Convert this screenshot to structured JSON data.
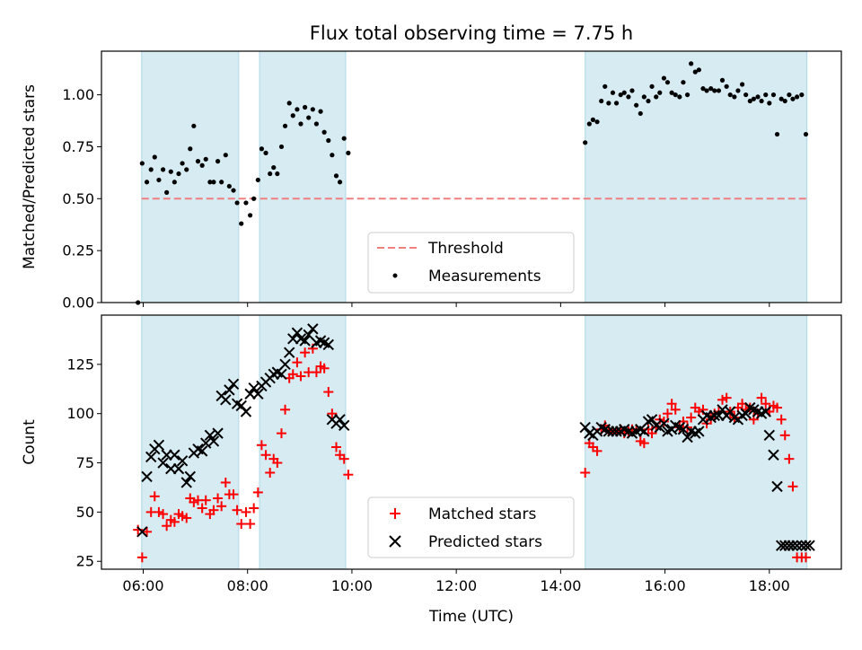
{
  "title": "Flux total observing time = 7.75 h",
  "colors": {
    "shade": "#add8e6",
    "threshold": "#f08080",
    "measurement": "#000000",
    "matched": "#ff0000",
    "predicted": "#000000"
  },
  "chart_data": [
    {
      "type": "scatter",
      "panel": "top",
      "ylabel": "Matched/Predicted stars",
      "xlabel": "",
      "xlim_hours": [
        5.2,
        19.38
      ],
      "ylim": [
        0,
        1.21
      ],
      "yticks": [
        "0.00",
        "0.25",
        "0.50",
        "0.75",
        "1.00"
      ],
      "grid": false,
      "legend_position": "lower-center",
      "observing_windows_hours": [
        [
          5.97,
          7.83
        ],
        [
          8.23,
          9.88
        ],
        [
          14.47,
          18.72
        ]
      ],
      "threshold": {
        "name": "Threshold",
        "y": 0.5,
        "x_start_hours": 5.97,
        "x_end_hours": 18.72
      },
      "series": [
        {
          "name": "Measurements",
          "x_hours": [
            5.9,
            5.98,
            6.07,
            6.15,
            6.22,
            6.3,
            6.38,
            6.45,
            6.53,
            6.6,
            6.68,
            6.75,
            6.83,
            6.9,
            6.97,
            7.05,
            7.13,
            7.2,
            7.28,
            7.35,
            7.43,
            7.5,
            7.58,
            7.65,
            7.73,
            7.8,
            7.88,
            7.97,
            8.05,
            8.12,
            8.2,
            8.27,
            8.35,
            8.43,
            8.5,
            8.57,
            8.65,
            8.72,
            8.8,
            8.87,
            8.95,
            9.02,
            9.1,
            9.17,
            9.25,
            9.32,
            9.4,
            9.47,
            9.55,
            9.62,
            9.7,
            9.77,
            9.85,
            9.93,
            14.47,
            14.55,
            14.62,
            14.7,
            14.78,
            14.85,
            14.92,
            15.0,
            15.07,
            15.15,
            15.22,
            15.3,
            15.37,
            15.45,
            15.53,
            15.6,
            15.68,
            15.75,
            15.83,
            15.9,
            15.98,
            16.05,
            16.13,
            16.2,
            16.28,
            16.35,
            16.43,
            16.5,
            16.58,
            16.65,
            16.73,
            16.8,
            16.88,
            16.95,
            17.03,
            17.1,
            17.18,
            17.25,
            17.33,
            17.4,
            17.48,
            17.55,
            17.63,
            17.7,
            17.78,
            17.85,
            17.93,
            18.0,
            18.08,
            18.15,
            18.23,
            18.3,
            18.38,
            18.45,
            18.53,
            18.62,
            18.7
          ],
          "y": [
            0.0,
            0.67,
            0.58,
            0.64,
            0.7,
            0.59,
            0.64,
            0.53,
            0.63,
            0.58,
            0.62,
            0.67,
            0.64,
            0.74,
            0.85,
            0.68,
            0.66,
            0.69,
            0.58,
            0.58,
            0.68,
            0.58,
            0.71,
            0.56,
            0.54,
            0.48,
            0.38,
            0.48,
            0.42,
            0.5,
            0.59,
            0.74,
            0.72,
            0.62,
            0.65,
            0.62,
            0.75,
            0.85,
            0.96,
            0.9,
            0.93,
            0.86,
            0.94,
            0.89,
            0.93,
            0.86,
            0.92,
            0.82,
            0.78,
            0.71,
            0.61,
            0.58,
            0.79,
            0.72,
            0.77,
            0.86,
            0.88,
            0.87,
            0.97,
            1.04,
            0.96,
            1.01,
            0.96,
            1.0,
            1.01,
            0.99,
            1.02,
            0.95,
            0.91,
            0.99,
            0.97,
            1.04,
            0.99,
            1.01,
            1.08,
            1.06,
            1.01,
            1.0,
            0.99,
            1.06,
            1.0,
            1.15,
            1.11,
            1.12,
            1.03,
            1.02,
            1.03,
            1.02,
            1.02,
            1.07,
            1.04,
            1.0,
            0.99,
            1.02,
            1.05,
            1.0,
            0.97,
            0.98,
            0.99,
            0.97,
            1.0,
            0.96,
            1.0,
            0.81,
            0.98,
            0.97,
            1.0,
            0.98,
            0.99,
            1.0,
            0.81
          ]
        }
      ]
    },
    {
      "type": "scatter",
      "panel": "bottom",
      "ylabel": "Count",
      "xlabel": "Time (UTC)",
      "xlim_hours": [
        5.2,
        19.38
      ],
      "xticks": [
        "06:00",
        "08:00",
        "10:00",
        "12:00",
        "14:00",
        "16:00",
        "18:00"
      ],
      "ylim": [
        21,
        150
      ],
      "yticks": [
        "25",
        "50",
        "75",
        "100",
        "125"
      ],
      "grid": false,
      "legend_position": "lower-center",
      "observing_windows_hours": [
        [
          5.97,
          7.83
        ],
        [
          8.23,
          9.88
        ],
        [
          14.47,
          18.72
        ]
      ],
      "series": [
        {
          "name": "Matched stars",
          "x_hours": [
            5.9,
            5.98,
            6.07,
            6.15,
            6.22,
            6.3,
            6.38,
            6.45,
            6.53,
            6.6,
            6.68,
            6.75,
            6.83,
            6.9,
            6.97,
            7.05,
            7.13,
            7.2,
            7.28,
            7.35,
            7.43,
            7.5,
            7.58,
            7.65,
            7.73,
            7.8,
            7.88,
            7.97,
            8.05,
            8.12,
            8.2,
            8.27,
            8.35,
            8.43,
            8.5,
            8.57,
            8.65,
            8.72,
            8.8,
            8.87,
            8.95,
            9.02,
            9.1,
            9.17,
            9.25,
            9.32,
            9.4,
            9.47,
            9.55,
            9.62,
            9.7,
            9.77,
            9.85,
            9.93,
            14.47,
            14.55,
            14.62,
            14.7,
            14.78,
            14.85,
            14.92,
            15.0,
            15.07,
            15.15,
            15.22,
            15.3,
            15.37,
            15.45,
            15.53,
            15.6,
            15.68,
            15.75,
            15.83,
            15.9,
            15.98,
            16.05,
            16.13,
            16.2,
            16.28,
            16.35,
            16.43,
            16.5,
            16.58,
            16.65,
            16.73,
            16.8,
            16.88,
            16.95,
            17.03,
            17.1,
            17.18,
            17.25,
            17.33,
            17.4,
            17.48,
            17.55,
            17.63,
            17.7,
            17.78,
            17.85,
            17.93,
            18.0,
            18.08,
            18.15,
            18.23,
            18.3,
            18.38,
            18.45,
            18.53,
            18.62,
            18.7
          ],
          "y": [
            41,
            27,
            40,
            50,
            58,
            50,
            49,
            43,
            46,
            45,
            49,
            48,
            47,
            57,
            55,
            56,
            52,
            56,
            49,
            51,
            57,
            53,
            65,
            59,
            59,
            51,
            44,
            50,
            44,
            52,
            60,
            84,
            79,
            70,
            77,
            75,
            90,
            102,
            118,
            120,
            126,
            119,
            131,
            121,
            133,
            121,
            124,
            123,
            111,
            100,
            83,
            79,
            77,
            69,
            70,
            85,
            83,
            81,
            92,
            94,
            91,
            91,
            91,
            92,
            90,
            91,
            92,
            92,
            86,
            85,
            92,
            90,
            93,
            97,
            96,
            100,
            105,
            102,
            93,
            96,
            93,
            98,
            103,
            101,
            102,
            95,
            97,
            100,
            101,
            107,
            108,
            101,
            98,
            103,
            105,
            102,
            103,
            97,
            100,
            108,
            105,
            101,
            104,
            103,
            97,
            89,
            77,
            63,
            27,
            27,
            27
          ]
        },
        {
          "name": "Predicted stars",
          "x_hours": [
            5.98,
            6.07,
            6.15,
            6.22,
            6.3,
            6.38,
            6.45,
            6.53,
            6.6,
            6.68,
            6.75,
            6.83,
            6.9,
            6.97,
            7.05,
            7.13,
            7.2,
            7.28,
            7.35,
            7.43,
            7.5,
            7.58,
            7.65,
            7.73,
            7.8,
            7.88,
            7.97,
            8.05,
            8.12,
            8.2,
            8.27,
            8.35,
            8.43,
            8.5,
            8.57,
            8.65,
            8.72,
            8.8,
            8.87,
            8.95,
            9.02,
            9.1,
            9.17,
            9.25,
            9.32,
            9.4,
            9.47,
            9.55,
            9.62,
            9.7,
            9.77,
            9.85,
            14.47,
            14.55,
            14.62,
            14.7,
            14.78,
            14.85,
            14.92,
            15.0,
            15.07,
            15.15,
            15.22,
            15.3,
            15.37,
            15.45,
            15.53,
            15.6,
            15.68,
            15.75,
            15.83,
            15.9,
            15.98,
            16.05,
            16.13,
            16.2,
            16.28,
            16.35,
            16.43,
            16.5,
            16.58,
            16.65,
            16.73,
            16.8,
            16.88,
            16.95,
            17.03,
            17.1,
            17.18,
            17.25,
            17.33,
            17.4,
            17.48,
            17.55,
            17.63,
            17.7,
            17.78,
            17.85,
            17.93,
            18.0,
            18.08,
            18.15,
            18.23,
            18.3,
            18.38,
            18.45,
            18.53,
            18.62,
            18.7,
            18.77
          ],
          "y": [
            40,
            68,
            78,
            82,
            84,
            75,
            79,
            72,
            79,
            72,
            76,
            65,
            68,
            80,
            82,
            81,
            85,
            89,
            86,
            90,
            109,
            107,
            112,
            115,
            105,
            104,
            101,
            110,
            113,
            110,
            114,
            116,
            118,
            120,
            121,
            120,
            125,
            131,
            138,
            141,
            138,
            137,
            140,
            143,
            136,
            137,
            136,
            135,
            97,
            95,
            97,
            94,
            93,
            90,
            89,
            91,
            93,
            92,
            91,
            91,
            91,
            91,
            92,
            91,
            90,
            91,
            92,
            91,
            96,
            97,
            94,
            93,
            95,
            91,
            92,
            94,
            93,
            92,
            88,
            91,
            90,
            91,
            97,
            99,
            98,
            99,
            99,
            102,
            99,
            101,
            98,
            97,
            99,
            100,
            103,
            102,
            101,
            100,
            101,
            89,
            79,
            63,
            33,
            33,
            33,
            33,
            33,
            33,
            33,
            33
          ]
        }
      ]
    }
  ]
}
